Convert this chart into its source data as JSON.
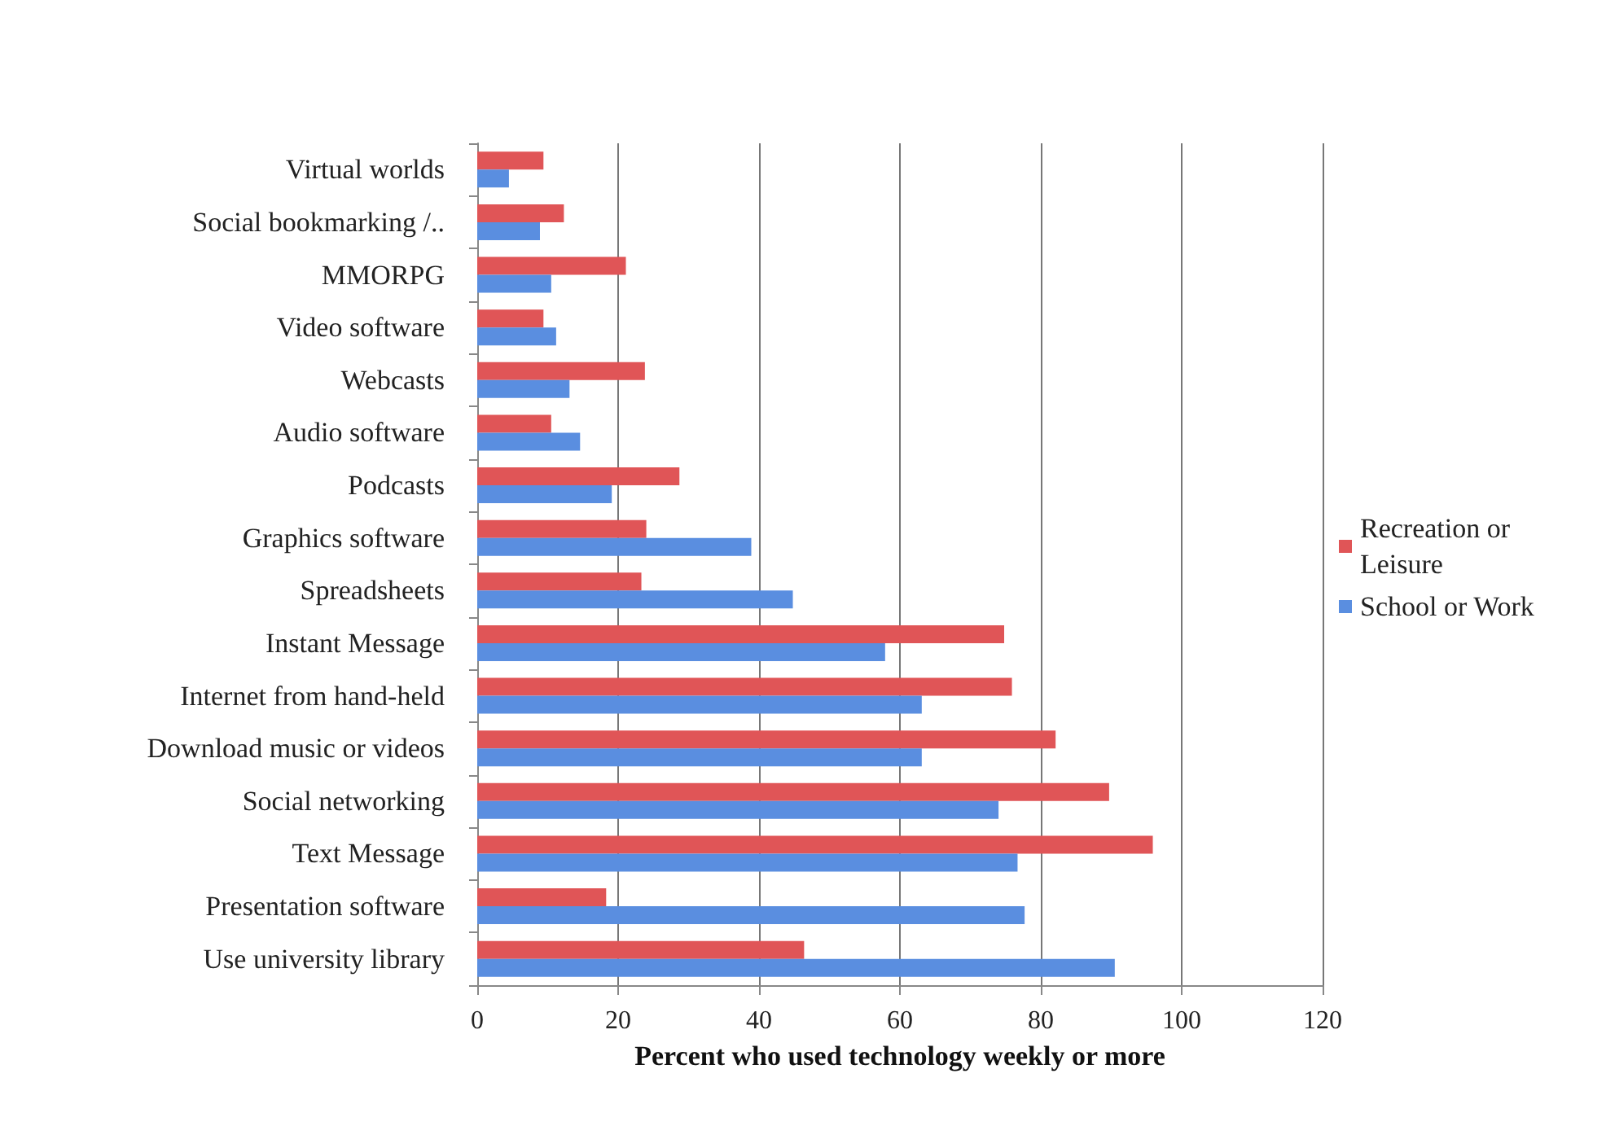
{
  "chart_data": {
    "type": "bar",
    "orientation": "horizontal",
    "xlabel": "Percent who used technology weekly or more",
    "categories": [
      "Virtual worlds",
      "Social bookmarking /..",
      "MMORPG",
      "Video software",
      "Webcasts",
      "Audio software",
      "Podcasts",
      "Graphics software",
      "Spreadsheets",
      "Instant Message",
      "Internet from hand-held",
      "Download music or videos",
      "Social networking",
      "Text Message",
      "Presentation software",
      "Use university library"
    ],
    "series": [
      {
        "name": "Recreation or Leisure",
        "color": "#e05557",
        "values": [
          9.4,
          12.3,
          21.1,
          9.4,
          23.8,
          10.5,
          28.7,
          24,
          23.3,
          74.8,
          75.9,
          82.1,
          89.7,
          95.9,
          18.3,
          46.4
        ]
      },
      {
        "name": "School or Work",
        "color": "#5a8ee0",
        "values": [
          4.5,
          8.9,
          10.5,
          11.2,
          13.1,
          14.6,
          19.1,
          38.9,
          44.8,
          57.9,
          63.1,
          63.1,
          74,
          76.7,
          77.7,
          90.5
        ]
      }
    ],
    "xlim": [
      0,
      120
    ],
    "xticks": [
      0,
      20,
      40,
      60,
      80,
      100,
      120
    ],
    "grid": "x",
    "legend": "right"
  }
}
